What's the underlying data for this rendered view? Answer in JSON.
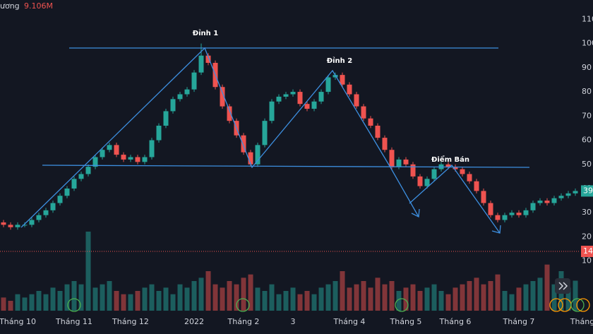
{
  "chart_data": {
    "type": "candlestick",
    "open": [
      26,
      25,
      24,
      25,
      25,
      27,
      29,
      31,
      34,
      37,
      40,
      44,
      46,
      49,
      53,
      56,
      58,
      54,
      52,
      53,
      51,
      53,
      60,
      66,
      72,
      77,
      79,
      81,
      88,
      95,
      92,
      82,
      74,
      68,
      62,
      55,
      50,
      58,
      68,
      76,
      78,
      79,
      80,
      75,
      73,
      76,
      80,
      86,
      87,
      83,
      79,
      74,
      69,
      66,
      61,
      56,
      49,
      52,
      50,
      45,
      41,
      44,
      48,
      50,
      49,
      48,
      46,
      43,
      39,
      34,
      29,
      27,
      29,
      30,
      29,
      31,
      34,
      35,
      34,
      36,
      37,
      38
    ],
    "high": [
      27,
      26,
      26,
      26,
      28,
      30,
      32,
      35,
      38,
      41,
      45,
      47,
      50,
      54,
      57,
      59,
      59,
      55,
      54,
      54,
      54,
      61,
      67,
      73,
      78,
      80,
      82,
      89,
      100,
      96,
      93,
      83,
      75,
      69,
      63,
      56,
      59,
      69,
      77,
      79,
      80,
      81,
      81,
      76,
      77,
      81,
      87,
      88,
      88,
      84,
      80,
      75,
      70,
      67,
      62,
      57,
      53,
      53,
      51,
      46,
      45,
      49,
      51,
      51,
      50,
      49,
      47,
      44,
      40,
      35,
      30,
      30,
      31,
      31,
      32,
      35,
      36,
      36,
      37,
      38,
      39,
      40
    ],
    "low": [
      24,
      23,
      23,
      24,
      24,
      26,
      28,
      30,
      33,
      36,
      39,
      43,
      45,
      48,
      52,
      55,
      53,
      51,
      51,
      50,
      50,
      52,
      59,
      65,
      71,
      76,
      78,
      80,
      87,
      91,
      81,
      73,
      67,
      61,
      54,
      49,
      49,
      57,
      67,
      75,
      77,
      78,
      74,
      72,
      72,
      75,
      79,
      85,
      82,
      78,
      73,
      68,
      65,
      60,
      55,
      48,
      48,
      49,
      44,
      40,
      40,
      43,
      47,
      48,
      47,
      45,
      42,
      38,
      33,
      28,
      26,
      26,
      28,
      28,
      28,
      30,
      33,
      33,
      33,
      35,
      36,
      37
    ],
    "close": [
      25,
      24,
      25,
      25,
      27,
      29,
      31,
      34,
      37,
      40,
      44,
      46,
      49,
      53,
      56,
      58,
      54,
      52,
      53,
      51,
      53,
      60,
      66,
      72,
      77,
      79,
      81,
      88,
      95,
      92,
      82,
      74,
      68,
      62,
      55,
      50,
      58,
      68,
      76,
      78,
      79,
      80,
      75,
      73,
      76,
      80,
      86,
      87,
      83,
      79,
      74,
      69,
      66,
      61,
      56,
      49,
      52,
      50,
      45,
      41,
      44,
      48,
      50,
      49,
      48,
      46,
      43,
      39,
      34,
      29,
      27,
      29,
      30,
      29,
      31,
      34,
      35,
      34,
      36,
      37,
      38,
      39
    ],
    "volume": {
      "name": "ương",
      "last_value_label": "9.106M",
      "values": [
        4,
        3,
        5,
        4,
        5,
        6,
        5,
        7,
        6,
        8,
        9,
        8,
        24,
        7,
        8,
        9,
        6,
        5,
        5,
        6,
        7,
        8,
        6,
        7,
        5,
        8,
        7,
        9,
        10,
        12,
        8,
        7,
        9,
        8,
        10,
        11,
        7,
        6,
        8,
        5,
        6,
        7,
        5,
        6,
        5,
        7,
        8,
        9,
        12,
        7,
        8,
        9,
        7,
        10,
        8,
        9,
        6,
        7,
        8,
        6,
        7,
        8,
        6,
        5,
        7,
        8,
        9,
        10,
        8,
        9,
        11,
        6,
        5,
        7,
        8,
        9,
        10,
        14,
        8,
        12,
        7,
        9.106
      ]
    },
    "up_color": "#26a69a",
    "down_color": "#ef5350",
    "ylim": [
      -12,
      118
    ],
    "yticks": [
      110,
      100,
      90,
      80,
      70,
      60,
      50,
      40,
      30,
      20,
      10
    ],
    "xticks": [
      {
        "value": 2,
        "label": "Tháng 10"
      },
      {
        "value": 10,
        "label": "Tháng 11"
      },
      {
        "value": 18,
        "label": "Tháng 12"
      },
      {
        "value": 27,
        "label": "2022"
      },
      {
        "value": 34,
        "label": "Tháng 2"
      },
      {
        "value": 41,
        "label": "3"
      },
      {
        "value": 49,
        "label": "Tháng 4"
      },
      {
        "value": 57,
        "label": "Tháng 5"
      },
      {
        "value": 64,
        "label": "Tháng 6"
      },
      {
        "value": 73,
        "label": "Tháng 7"
      },
      {
        "value": 82,
        "label": "Tháng"
      }
    ],
    "price_line": 14,
    "annotations": [
      "Đỉnh 1",
      "Đỉnh 2",
      "Điểm Bán"
    ]
  }
}
